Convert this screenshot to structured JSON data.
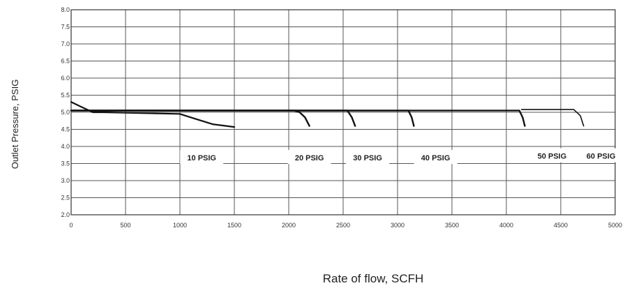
{
  "chart_data": {
    "type": "line",
    "title": "",
    "xlabel": "Rate of flow, SCFH",
    "ylabel": "Outlet Pressure, PSIG",
    "xlim": [
      0,
      5000
    ],
    "ylim": [
      2.0,
      8.0
    ],
    "x_ticks": [
      "0",
      "500",
      "1000",
      "1500",
      "2000",
      "2500",
      "3000",
      "3500",
      "4000",
      "4500",
      "5000"
    ],
    "y_ticks": [
      "2.0",
      "2.5",
      "3.0",
      "3.5",
      "4.0",
      "4.5",
      "5.0",
      "5.5",
      "6.0",
      "6.5",
      "7.0",
      "7.5",
      "8.0"
    ],
    "grid": true,
    "series": [
      {
        "name": "10 PSIG",
        "x": [
          0,
          100,
          200,
          300,
          1000,
          1150,
          1300,
          1500
        ],
        "y": [
          5.3,
          5.15,
          5.0,
          5.0,
          4.95,
          4.8,
          4.65,
          4.57
        ]
      },
      {
        "name": "20 PSIG",
        "x": [
          0,
          2050,
          2100,
          2150,
          2190
        ],
        "y": [
          5.05,
          5.05,
          5.0,
          4.85,
          4.6
        ]
      },
      {
        "name": "30 PSIG",
        "x": [
          0,
          2540,
          2580,
          2610
        ],
        "y": [
          5.05,
          5.05,
          4.85,
          4.6
        ]
      },
      {
        "name": "40 PSIG",
        "x": [
          0,
          3100,
          3130,
          3150
        ],
        "y": [
          5.05,
          5.05,
          4.85,
          4.6
        ]
      },
      {
        "name": "50 PSIG",
        "x": [
          0,
          4120,
          4150,
          4170
        ],
        "y": [
          5.05,
          5.05,
          4.85,
          4.6
        ]
      },
      {
        "name": "60 PSIG",
        "x": [
          4140,
          4620,
          4680,
          4710
        ],
        "y": [
          5.08,
          5.08,
          4.9,
          4.6
        ]
      }
    ],
    "labels": [
      {
        "text": "10 PSIG",
        "x": 1200,
        "y": 3.65
      },
      {
        "text": "20 PSIG",
        "x": 2190,
        "y": 3.65
      },
      {
        "text": "30 PSIG",
        "x": 2725,
        "y": 3.65
      },
      {
        "text": "40 PSIG",
        "x": 3350,
        "y": 3.65
      },
      {
        "text": "50 PSIG",
        "x": 4420,
        "y": 3.7
      },
      {
        "text": "60 PSIG",
        "x": 4870,
        "y": 3.7
      }
    ]
  }
}
